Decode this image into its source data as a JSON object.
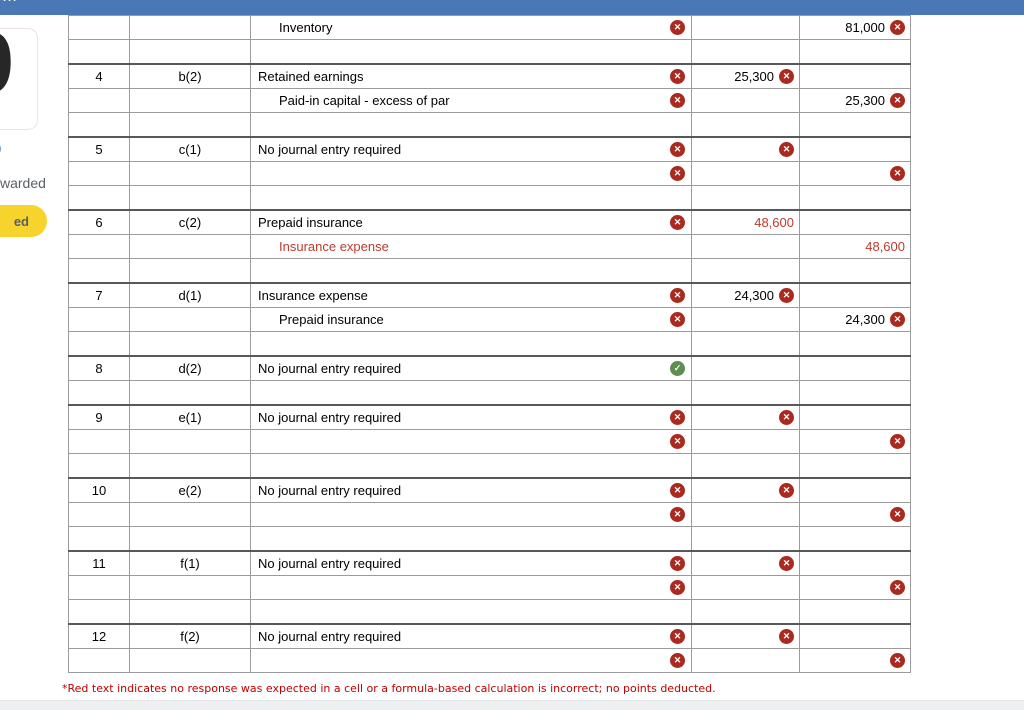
{
  "topbar": {
    "fragment": "...",
    "color": "#4a77b5"
  },
  "sidebar": {
    "big_number": "9",
    "score_fragment": "0",
    "awarded_fragment": "warded",
    "badge_fragment": "ed",
    "badge_color": "#f6d32d"
  },
  "colors": {
    "error_icon": "#ab2a1f",
    "success_icon": "#5e8e50",
    "error_cell_bg": "#fdf2f2",
    "success_cell_bg": "#f3f7ef",
    "red_text": "#bf3a2e",
    "footnote_red": "#c00000"
  },
  "journal": {
    "entries": [
      {
        "no": "",
        "label": "",
        "lines": [
          {
            "account": {
              "text": "Inventory",
              "indent": true,
              "red": false,
              "icon": "x",
              "bg": "pink"
            },
            "debit": {
              "text": "",
              "red": false,
              "icon": null,
              "bg": "white"
            },
            "credit": {
              "text": "81,000",
              "red": false,
              "icon": "x",
              "bg": "pink"
            }
          }
        ]
      },
      {
        "no": "4",
        "label": "b(2)",
        "lines": [
          {
            "account": {
              "text": "Retained earnings",
              "indent": false,
              "red": false,
              "icon": "x",
              "bg": "pink"
            },
            "debit": {
              "text": "25,300",
              "red": false,
              "icon": "x",
              "bg": "pink"
            },
            "credit": {
              "text": "",
              "red": false,
              "icon": null,
              "bg": "white"
            }
          },
          {
            "account": {
              "text": "Paid-in capital - excess of par",
              "indent": true,
              "red": false,
              "icon": "x",
              "bg": "pink"
            },
            "debit": {
              "text": "",
              "red": false,
              "icon": null,
              "bg": "white"
            },
            "credit": {
              "text": "25,300",
              "red": false,
              "icon": "x",
              "bg": "pink"
            }
          }
        ]
      },
      {
        "no": "5",
        "label": "c(1)",
        "lines": [
          {
            "account": {
              "text": "No journal entry required",
              "indent": false,
              "red": false,
              "icon": "x",
              "bg": "pink"
            },
            "debit": {
              "text": "",
              "red": false,
              "icon": "x",
              "bg": "pink"
            },
            "credit": {
              "text": "",
              "red": false,
              "icon": null,
              "bg": "white"
            }
          },
          {
            "account": {
              "text": "",
              "indent": false,
              "red": false,
              "icon": "x",
              "bg": "pink"
            },
            "debit": {
              "text": "",
              "red": false,
              "icon": null,
              "bg": "white"
            },
            "credit": {
              "text": "",
              "red": false,
              "icon": "x",
              "bg": "pink"
            }
          }
        ]
      },
      {
        "no": "6",
        "label": "c(2)",
        "lines": [
          {
            "account": {
              "text": "Prepaid insurance",
              "indent": false,
              "red": false,
              "icon": "x",
              "bg": "pink"
            },
            "debit": {
              "text": "48,600",
              "red": true,
              "icon": null,
              "bg": "white"
            },
            "credit": {
              "text": "",
              "red": false,
              "icon": null,
              "bg": "white"
            }
          },
          {
            "account": {
              "text": "Insurance expense",
              "indent": true,
              "red": true,
              "icon": null,
              "bg": "white"
            },
            "debit": {
              "text": "",
              "red": false,
              "icon": null,
              "bg": "white"
            },
            "credit": {
              "text": "48,600",
              "red": true,
              "icon": null,
              "bg": "white"
            }
          }
        ]
      },
      {
        "no": "7",
        "label": "d(1)",
        "lines": [
          {
            "account": {
              "text": "Insurance expense",
              "indent": false,
              "red": false,
              "icon": "x",
              "bg": "pink"
            },
            "debit": {
              "text": "24,300",
              "red": false,
              "icon": "x",
              "bg": "pink"
            },
            "credit": {
              "text": "",
              "red": false,
              "icon": null,
              "bg": "white"
            }
          },
          {
            "account": {
              "text": "Prepaid insurance",
              "indent": true,
              "red": false,
              "icon": "x",
              "bg": "pink"
            },
            "debit": {
              "text": "",
              "red": false,
              "icon": null,
              "bg": "white"
            },
            "credit": {
              "text": "24,300",
              "red": false,
              "icon": "x",
              "bg": "pink"
            }
          }
        ]
      },
      {
        "no": "8",
        "label": "d(2)",
        "lines": [
          {
            "account": {
              "text": "No journal entry required",
              "indent": false,
              "red": false,
              "icon": "check",
              "bg": "green"
            },
            "debit": {
              "text": "",
              "red": false,
              "icon": null,
              "bg": "white"
            },
            "credit": {
              "text": "",
              "red": false,
              "icon": null,
              "bg": "white"
            }
          }
        ]
      },
      {
        "no": "9",
        "label": "e(1)",
        "lines": [
          {
            "account": {
              "text": "No journal entry required",
              "indent": false,
              "red": false,
              "icon": "x",
              "bg": "pink"
            },
            "debit": {
              "text": "",
              "red": false,
              "icon": "x",
              "bg": "pink"
            },
            "credit": {
              "text": "",
              "red": false,
              "icon": null,
              "bg": "white"
            }
          },
          {
            "account": {
              "text": "",
              "indent": false,
              "red": false,
              "icon": "x",
              "bg": "pink"
            },
            "debit": {
              "text": "",
              "red": false,
              "icon": null,
              "bg": "white"
            },
            "credit": {
              "text": "",
              "red": false,
              "icon": "x",
              "bg": "pink"
            }
          }
        ]
      },
      {
        "no": "10",
        "label": "e(2)",
        "lines": [
          {
            "account": {
              "text": "No journal entry required",
              "indent": false,
              "red": false,
              "icon": "x",
              "bg": "pink"
            },
            "debit": {
              "text": "",
              "red": false,
              "icon": "x",
              "bg": "pink"
            },
            "credit": {
              "text": "",
              "red": false,
              "icon": null,
              "bg": "white"
            }
          },
          {
            "account": {
              "text": "",
              "indent": false,
              "red": false,
              "icon": "x",
              "bg": "pink"
            },
            "debit": {
              "text": "",
              "red": false,
              "icon": null,
              "bg": "white"
            },
            "credit": {
              "text": "",
              "red": false,
              "icon": "x",
              "bg": "pink"
            }
          }
        ]
      },
      {
        "no": "11",
        "label": "f(1)",
        "lines": [
          {
            "account": {
              "text": "No journal entry required",
              "indent": false,
              "red": false,
              "icon": "x",
              "bg": "pink"
            },
            "debit": {
              "text": "",
              "red": false,
              "icon": "x",
              "bg": "pink"
            },
            "credit": {
              "text": "",
              "red": false,
              "icon": null,
              "bg": "white"
            }
          },
          {
            "account": {
              "text": "",
              "indent": false,
              "red": false,
              "icon": "x",
              "bg": "pink"
            },
            "debit": {
              "text": "",
              "red": false,
              "icon": null,
              "bg": "white"
            },
            "credit": {
              "text": "",
              "red": false,
              "icon": "x",
              "bg": "pink"
            }
          }
        ]
      },
      {
        "no": "12",
        "label": "f(2)",
        "lines": [
          {
            "account": {
              "text": "No journal entry required",
              "indent": false,
              "red": false,
              "icon": "x",
              "bg": "pink"
            },
            "debit": {
              "text": "",
              "red": false,
              "icon": "x",
              "bg": "pink"
            },
            "credit": {
              "text": "",
              "red": false,
              "icon": null,
              "bg": "white"
            }
          },
          {
            "account": {
              "text": "",
              "indent": false,
              "red": false,
              "icon": "x",
              "bg": "pink"
            },
            "debit": {
              "text": "",
              "red": false,
              "icon": null,
              "bg": "white"
            },
            "credit": {
              "text": "",
              "red": false,
              "icon": "x",
              "bg": "pink"
            }
          }
        ]
      }
    ]
  },
  "footnote": {
    "text": "*Red text indicates no response was expected in a cell or a formula-based calculation is incorrect; no points deducted."
  }
}
